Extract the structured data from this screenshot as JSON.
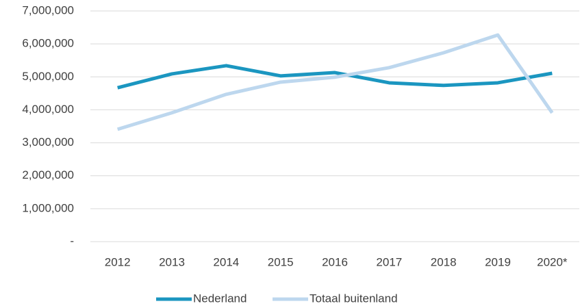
{
  "chart_data": {
    "type": "line",
    "categories": [
      "2012",
      "2013",
      "2014",
      "2015",
      "2016",
      "2017",
      "2018",
      "2019",
      "2020*"
    ],
    "series": [
      {
        "name": "Nederland",
        "color": "#1b96c0",
        "values": [
          4670000,
          5090000,
          5340000,
          5030000,
          5130000,
          4820000,
          4740000,
          4820000,
          5110000
        ]
      },
      {
        "name": "Totaal buitenland",
        "color": "#bdd7ee",
        "values": [
          3410000,
          3910000,
          4470000,
          4840000,
          4990000,
          5280000,
          5730000,
          6270000,
          3910000
        ]
      }
    ],
    "ylim": [
      0,
      7000000
    ],
    "yticks": [
      {
        "value": 0,
        "label": "-"
      },
      {
        "value": 1000000,
        "label": "1,000,000"
      },
      {
        "value": 2000000,
        "label": "2,000,000"
      },
      {
        "value": 3000000,
        "label": "3,000,000"
      },
      {
        "value": 4000000,
        "label": "4,000,000"
      },
      {
        "value": 5000000,
        "label": "5,000,000"
      },
      {
        "value": 6000000,
        "label": "6,000,000"
      },
      {
        "value": 7000000,
        "label": "7,000,000"
      }
    ],
    "grid": true,
    "legend": "bottom"
  }
}
